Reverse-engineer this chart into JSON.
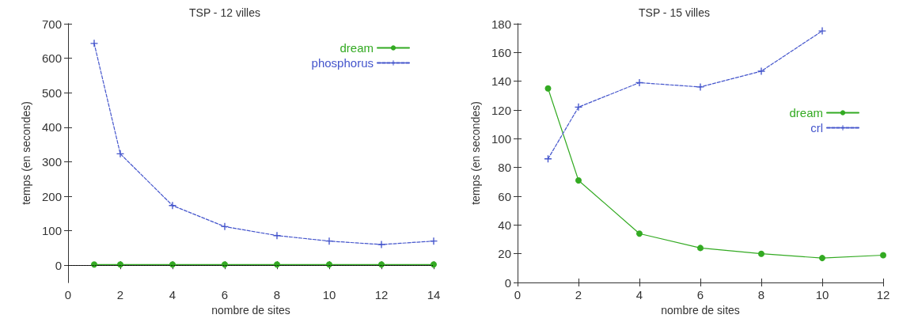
{
  "chart_data": [
    {
      "type": "line",
      "title": "TSP - 12 villes",
      "xlabel": "nombre de sites",
      "ylabel": "temps (en secondes)",
      "xlim": [
        0,
        14
      ],
      "xticks": [
        0,
        2,
        4,
        6,
        8,
        10,
        12,
        14
      ],
      "ylim": [
        -50,
        700
      ],
      "yticks": [
        0,
        100,
        200,
        300,
        400,
        500,
        600,
        700
      ],
      "grid": false,
      "legend": "top right",
      "ref_lines": [
        {
          "axis": "y",
          "value": 0,
          "color": "#000000",
          "line_style": "dotted"
        }
      ],
      "series": [
        {
          "name": "dream",
          "color": "#33aa22",
          "marker": "circle",
          "line_style": "solid",
          "x": [
            1,
            2,
            4,
            6,
            8,
            10,
            12,
            14
          ],
          "values": [
            2,
            2,
            2,
            2,
            2,
            2,
            2,
            2
          ]
        },
        {
          "name": "phosphorus",
          "color": "#4455cc",
          "marker": "cross",
          "line_style": "dashed",
          "x": [
            1,
            2,
            4,
            6,
            8,
            10,
            12,
            14
          ],
          "values": [
            643,
            323,
            173,
            112,
            86,
            70,
            60,
            70
          ]
        }
      ]
    },
    {
      "type": "line",
      "title": "TSP - 15 villes",
      "xlabel": "nombre de sites",
      "ylabel": "temps (en secondes)",
      "xlim": [
        0,
        12
      ],
      "xticks": [
        0,
        2,
        4,
        6,
        8,
        10,
        12
      ],
      "ylim": [
        0,
        180
      ],
      "yticks": [
        0,
        20,
        40,
        60,
        80,
        100,
        120,
        140,
        160,
        180
      ],
      "grid": false,
      "legend": "right",
      "series": [
        {
          "name": "dream",
          "color": "#33aa22",
          "marker": "circle",
          "line_style": "solid",
          "x": [
            1,
            2,
            4,
            6,
            8,
            10,
            12
          ],
          "values": [
            135,
            71,
            34,
            24,
            20,
            17,
            19
          ]
        },
        {
          "name": "crl",
          "color": "#4455cc",
          "marker": "cross",
          "line_style": "dashed",
          "x": [
            1,
            2,
            4,
            6,
            8,
            10
          ],
          "values": [
            86,
            122,
            139,
            136,
            147,
            175
          ]
        }
      ]
    }
  ]
}
